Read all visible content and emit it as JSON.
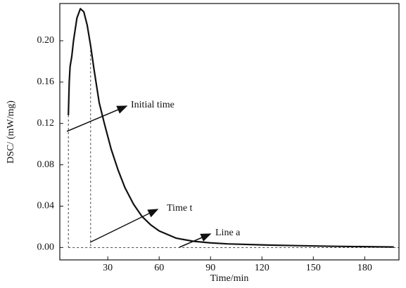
{
  "chart_data": {
    "type": "line",
    "xlabel": "Time/min",
    "ylabel": "DSC/ (mW/mg)",
    "x": [
      7,
      7.5,
      8,
      9,
      10,
      12,
      14,
      16,
      18,
      20,
      22,
      25,
      28,
      32,
      36,
      40,
      45,
      50,
      55,
      60,
      70,
      80,
      90,
      100,
      120,
      140,
      160,
      180,
      197
    ],
    "series": [
      {
        "color": "#111111",
        "values": [
          0.128,
          0.16,
          0.175,
          0.185,
          0.2,
          0.222,
          0.231,
          0.228,
          0.215,
          0.195,
          0.172,
          0.14,
          0.12,
          0.095,
          0.075,
          0.058,
          0.042,
          0.03,
          0.022,
          0.016,
          0.009,
          0.006,
          0.0045,
          0.0035,
          0.0025,
          0.0018,
          0.0012,
          0.0008,
          0.0005
        ]
      }
    ],
    "dashed_x": [
      7,
      20
    ],
    "annotations": [
      "Initial time",
      "Time t",
      "Line a"
    ],
    "xlim": [
      2,
      200
    ],
    "xticks": [
      30,
      60,
      90,
      120,
      150,
      180
    ],
    "ylim": [
      -0.012,
      0.236
    ],
    "yticks": [
      {
        "value": 0,
        "label": "0.00"
      },
      {
        "value": 0.04,
        "label": "0.04"
      },
      {
        "value": 0.08,
        "label": "0.08"
      },
      {
        "value": 0.12,
        "label": "0.12"
      },
      {
        "value": 0.16,
        "label": "0.16"
      },
      {
        "value": 0.2,
        "label": "0.20"
      }
    ],
    "grid": false
  }
}
